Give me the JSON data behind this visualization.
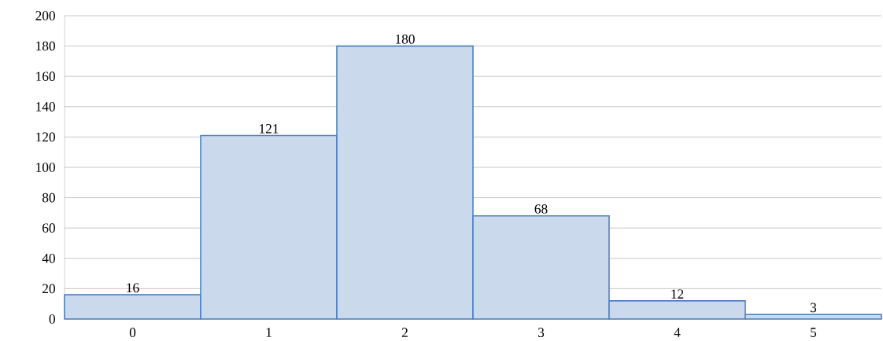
{
  "chart_data": {
    "type": "bar",
    "categories": [
      "0",
      "1",
      "2",
      "3",
      "4",
      "5"
    ],
    "values": [
      16,
      121,
      180,
      68,
      12,
      3
    ],
    "color": "#4f81bd",
    "ylim": [
      0,
      200
    ],
    "yticks": [
      0,
      20,
      40,
      60,
      80,
      100,
      120,
      140,
      160,
      180,
      200
    ],
    "grid": "y",
    "data_labels": true
  }
}
